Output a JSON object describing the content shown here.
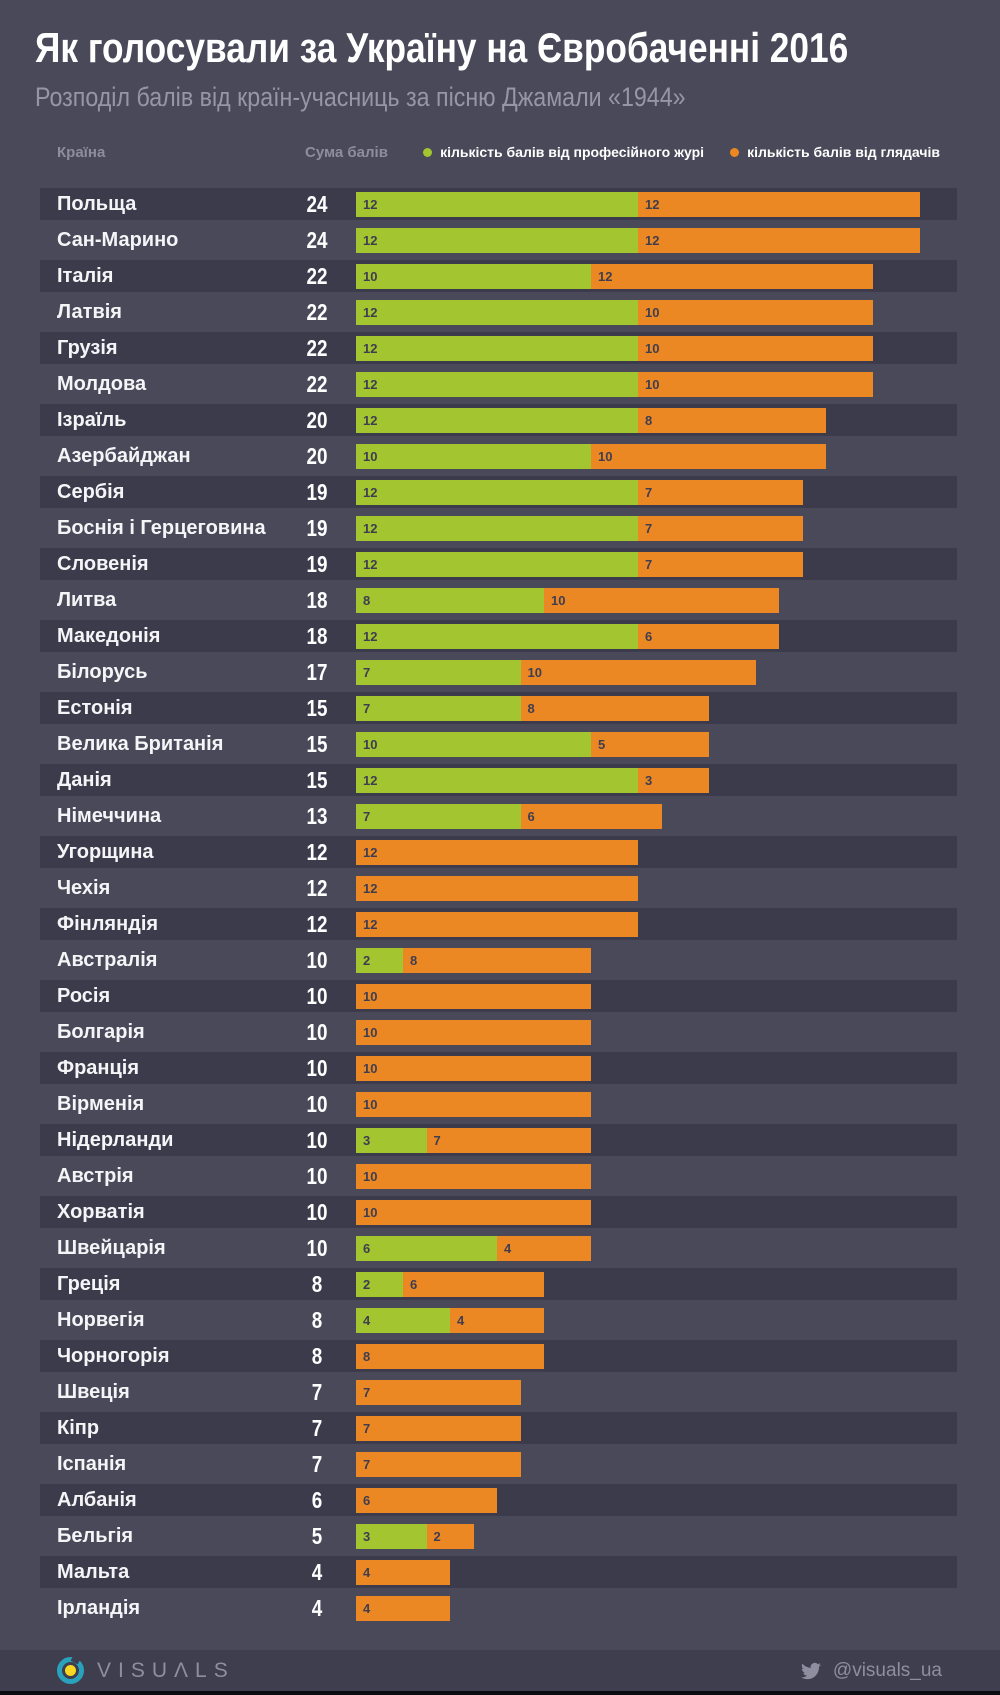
{
  "header": {
    "title": "Як голосували за Україну на Євробаченні 2016",
    "subtitle": "Розподіл балів від країн-учасниць за пісню Джамали «1944»"
  },
  "table": {
    "country_col": "Країна",
    "sum_col": "Сума балів"
  },
  "legend": {
    "jury_label": "кількість балів від професійного журі",
    "audience_label": "кількість балів від глядачів"
  },
  "colors": {
    "jury": "#a3c530",
    "audience": "#ec8823",
    "background": "#4a4959",
    "row_stripe": "#3c3b4b",
    "footer": "#3f3e4e"
  },
  "chart_data": {
    "type": "bar",
    "orientation": "horizontal",
    "stacked": true,
    "title": "Як голосували за Україну на Євробаченні 2016",
    "subtitle": "Розподіл балів від країн-учасниць за пісню Джамали «1944»",
    "series_names": [
      "кількість балів від професійного журі",
      "кількість балів від глядачів"
    ],
    "xlim": [
      0,
      24
    ],
    "grid": false,
    "legend_position": "top",
    "rows": [
      {
        "country": "Польща",
        "total": 24,
        "jury": 12,
        "audience": 12
      },
      {
        "country": "Сан-Марино",
        "total": 24,
        "jury": 12,
        "audience": 12
      },
      {
        "country": "Італія",
        "total": 22,
        "jury": 10,
        "audience": 12
      },
      {
        "country": "Латвія",
        "total": 22,
        "jury": 12,
        "audience": 10
      },
      {
        "country": "Грузія",
        "total": 22,
        "jury": 12,
        "audience": 10
      },
      {
        "country": "Молдова",
        "total": 22,
        "jury": 12,
        "audience": 10
      },
      {
        "country": "Ізраїль",
        "total": 20,
        "jury": 12,
        "audience": 8
      },
      {
        "country": "Азербайджан",
        "total": 20,
        "jury": 10,
        "audience": 10
      },
      {
        "country": "Сербія",
        "total": 19,
        "jury": 12,
        "audience": 7
      },
      {
        "country": "Боснія і Герцеговина",
        "total": 19,
        "jury": 12,
        "audience": 7
      },
      {
        "country": "Словенія",
        "total": 19,
        "jury": 12,
        "audience": 7
      },
      {
        "country": "Литва",
        "total": 18,
        "jury": 8,
        "audience": 10
      },
      {
        "country": "Македонія",
        "total": 18,
        "jury": 12,
        "audience": 6
      },
      {
        "country": "Білорусь",
        "total": 17,
        "jury": 7,
        "audience": 10
      },
      {
        "country": "Естонія",
        "total": 15,
        "jury": 7,
        "audience": 8
      },
      {
        "country": "Велика Британія",
        "total": 15,
        "jury": 10,
        "audience": 5
      },
      {
        "country": "Данія",
        "total": 15,
        "jury": 12,
        "audience": 3
      },
      {
        "country": "Німеччина",
        "total": 13,
        "jury": 7,
        "audience": 6
      },
      {
        "country": "Угорщина",
        "total": 12,
        "jury": 0,
        "audience": 12
      },
      {
        "country": "Чехія",
        "total": 12,
        "jury": 0,
        "audience": 12
      },
      {
        "country": "Фінляндія",
        "total": 12,
        "jury": 0,
        "audience": 12
      },
      {
        "country": "Австралія",
        "total": 10,
        "jury": 2,
        "audience": 8
      },
      {
        "country": "Росія",
        "total": 10,
        "jury": 0,
        "audience": 10
      },
      {
        "country": "Болгарія",
        "total": 10,
        "jury": 0,
        "audience": 10
      },
      {
        "country": "Франція",
        "total": 10,
        "jury": 0,
        "audience": 10
      },
      {
        "country": "Вірменія",
        "total": 10,
        "jury": 0,
        "audience": 10
      },
      {
        "country": "Нідерланди",
        "total": 10,
        "jury": 3,
        "audience": 7
      },
      {
        "country": "Австрія",
        "total": 10,
        "jury": 0,
        "audience": 10
      },
      {
        "country": "Хорватія",
        "total": 10,
        "jury": 0,
        "audience": 10
      },
      {
        "country": "Швейцарія",
        "total": 10,
        "jury": 6,
        "audience": 4
      },
      {
        "country": "Греція",
        "total": 8,
        "jury": 2,
        "audience": 6
      },
      {
        "country": "Норвегія",
        "total": 8,
        "jury": 4,
        "audience": 4
      },
      {
        "country": "Чорногорія",
        "total": 8,
        "jury": 0,
        "audience": 8
      },
      {
        "country": "Швеція",
        "total": 7,
        "jury": 0,
        "audience": 7
      },
      {
        "country": "Кіпр",
        "total": 7,
        "jury": 0,
        "audience": 7
      },
      {
        "country": "Іспанія",
        "total": 7,
        "jury": 0,
        "audience": 7
      },
      {
        "country": "Албанія",
        "total": 6,
        "jury": 0,
        "audience": 6
      },
      {
        "country": "Бельгія",
        "total": 5,
        "jury": 3,
        "audience": 2
      },
      {
        "country": "Мальта",
        "total": 4,
        "jury": 0,
        "audience": 4
      },
      {
        "country": "Ірландія",
        "total": 4,
        "jury": 0,
        "audience": 4
      }
    ]
  },
  "footer": {
    "logo_text": "VISUΛLS",
    "twitter_handle": "@visuals_ua"
  }
}
